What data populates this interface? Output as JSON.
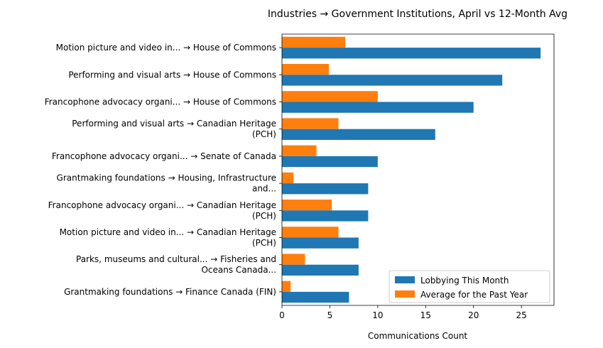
{
  "chart_data": {
    "type": "bar",
    "orientation": "horizontal",
    "title": "Industries → Government Institutions, April vs 12-Month Avg",
    "xlabel": "Communications Count",
    "ylabel": "",
    "xlim": [
      0,
      28.4
    ],
    "xticks": [
      0,
      5,
      10,
      15,
      20,
      25
    ],
    "grid": false,
    "legend_position": "bottom-right",
    "categories": [
      [
        "Motion picture and video in... → House of Commons"
      ],
      [
        "Performing and visual arts → House of Commons"
      ],
      [
        "Francophone advocacy organi... → House of Commons"
      ],
      [
        "Performing and visual arts → Canadian Heritage",
        "(PCH)"
      ],
      [
        "Francophone advocacy organi... → Senate of Canada"
      ],
      [
        "Grantmaking foundations → Housing, Infrastructure",
        "and..."
      ],
      [
        "Francophone advocacy organi... → Canadian Heritage",
        "(PCH)"
      ],
      [
        "Motion picture and video in... → Canadian Heritage",
        "(PCH)"
      ],
      [
        "Parks, museums and cultural... → Fisheries and",
        "Oceans Canada..."
      ],
      [
        "Grantmaking foundations → Finance Canada (FIN)"
      ]
    ],
    "series": [
      {
        "name": "Lobbying This Month",
        "color": "#1f77b4",
        "values": [
          27,
          23,
          20,
          16,
          10,
          9,
          9,
          8,
          8,
          7
        ]
      },
      {
        "name": "Average for the Past Year",
        "color": "#ff7f0e",
        "values": [
          6.6,
          4.9,
          10.0,
          5.9,
          3.6,
          1.2,
          5.2,
          5.9,
          2.4,
          0.9
        ]
      }
    ]
  }
}
